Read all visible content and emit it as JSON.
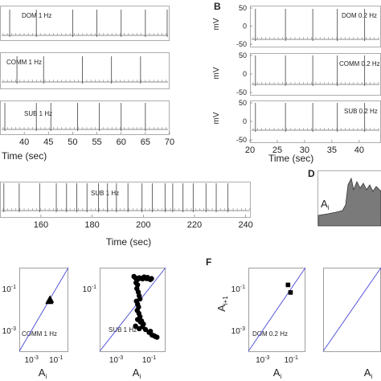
{
  "panel_labels": [
    "B",
    "D",
    "F"
  ],
  "chart_data": [
    {
      "type": "line",
      "id": "dom1",
      "annotation": "DOM 1 Hz",
      "xlim": [
        35,
        70
      ],
      "x_ticks": [],
      "spike_times": [
        37,
        42.5,
        50,
        55,
        60,
        65,
        69.5
      ]
    },
    {
      "type": "line",
      "id": "comm1",
      "annotation": "COMM 1 Hz",
      "xlim": [
        35,
        70
      ],
      "x_ticks": [],
      "spike_times": [
        38.5,
        44,
        52,
        58,
        64
      ]
    },
    {
      "type": "line",
      "id": "sub1",
      "annotation": "SUB 1 Hz",
      "xlim": [
        35,
        70
      ],
      "xlabel": "Time (sec)",
      "x_ticks": [
        "40",
        "45",
        "50",
        "55",
        "60",
        "65",
        "70"
      ],
      "spike_times": [
        36,
        42.5,
        45.5,
        51,
        55.5,
        60,
        65
      ]
    },
    {
      "type": "line",
      "id": "dom02",
      "annotation": "DOM 0.2 Hz",
      "xlim": [
        20,
        44
      ],
      "ylim": [
        -50,
        50
      ],
      "ylabel": "mV",
      "y_ticks": [
        "50",
        "0",
        "-50"
      ],
      "x_ticks": [],
      "spike_times": [
        21,
        26.5,
        31.5,
        36,
        41
      ]
    },
    {
      "type": "line",
      "id": "comm02",
      "annotation": "COMM 0.2 Hz",
      "xlim": [
        20,
        44
      ],
      "ylim": [
        -50,
        50
      ],
      "ylabel": "mV",
      "y_ticks": [
        "50",
        "0",
        "-50"
      ],
      "x_ticks": [],
      "spike_times": [
        21,
        26.5,
        31.5,
        36,
        41
      ]
    },
    {
      "type": "line",
      "id": "sub02",
      "annotation": "SUB 0.2 Hz",
      "xlim": [
        20,
        44
      ],
      "ylim": [
        -50,
        50
      ],
      "ylabel": "mV",
      "y_ticks": [
        "50",
        "0",
        "-50"
      ],
      "xlabel": "Time (sec)",
      "x_ticks": [
        "20",
        "25",
        "30",
        "35",
        "40"
      ],
      "spike_times": [
        21,
        26.5,
        31.5,
        36,
        41
      ]
    },
    {
      "type": "line",
      "id": "sublong",
      "annotation": "SUB 1 Hz",
      "xlim": [
        144,
        242
      ],
      "xlabel": "Time (sec)",
      "x_ticks": [
        "160",
        "180",
        "200",
        "220",
        "240"
      ],
      "spike_times": [
        145.5,
        151.5,
        159.5,
        166,
        170,
        174,
        178,
        182.5,
        186,
        189.5,
        194,
        199.5,
        203.5,
        208.5,
        211.5,
        215.5,
        219.5,
        224.5,
        228.5,
        233
      ]
    },
    {
      "type": "area",
      "id": "amplitude",
      "annotation": "A",
      "annotation_sub": "i"
    },
    {
      "type": "scatter",
      "id": "comm_ret",
      "annotation": "COMM 1 Hz",
      "xlabel": "A",
      "xlabel_sub": "i",
      "x_ticks": [
        "10-3",
        "10-1"
      ],
      "y_ticks": [
        "10-1",
        "10-3"
      ],
      "marker": "triangle",
      "points": [
        [
          0.028,
          0.026
        ],
        [
          0.03,
          0.029
        ],
        [
          0.032,
          0.031
        ]
      ]
    },
    {
      "type": "scatter",
      "id": "sub_ret",
      "annotation": "SUB 1 Hz",
      "xlabel": "A",
      "xlabel_sub": "i",
      "x_ticks": [
        "10-3",
        "10-1"
      ],
      "y_ticks": [
        "10-1"
      ],
      "marker": "circle",
      "points": [
        [
          0.012,
          0.38
        ],
        [
          0.015,
          0.32
        ],
        [
          0.018,
          0.3
        ],
        [
          0.02,
          0.27
        ],
        [
          0.025,
          0.33
        ],
        [
          0.03,
          0.31
        ],
        [
          0.04,
          0.29
        ],
        [
          0.05,
          0.36
        ],
        [
          0.06,
          0.32
        ],
        [
          0.07,
          0.3
        ],
        [
          0.08,
          0.34
        ],
        [
          0.09,
          0.31
        ],
        [
          0.1,
          0.29
        ],
        [
          0.12,
          0.27
        ],
        [
          0.14,
          0.3
        ],
        [
          0.016,
          0.19
        ],
        [
          0.02,
          0.15
        ],
        [
          0.018,
          0.1
        ],
        [
          0.022,
          0.068
        ],
        [
          0.025,
          0.045
        ],
        [
          0.028,
          0.032
        ],
        [
          0.017,
          0.025
        ],
        [
          0.02,
          0.018
        ],
        [
          0.023,
          0.013
        ],
        [
          0.019,
          0.009
        ],
        [
          0.024,
          0.0065
        ],
        [
          0.028,
          0.0045
        ],
        [
          0.02,
          0.0033
        ],
        [
          0.03,
          0.0025
        ],
        [
          0.045,
          0.002
        ],
        [
          0.035,
          0.0028
        ],
        [
          0.015,
          0.0016
        ],
        [
          0.025,
          0.0012
        ],
        [
          0.04,
          0.0015
        ],
        [
          0.06,
          0.0011
        ],
        [
          0.1,
          0.0008
        ],
        [
          0.15,
          0.0006
        ],
        [
          0.2,
          0.00055
        ],
        [
          0.25,
          0.0005
        ],
        [
          0.3,
          0.00047
        ],
        [
          0.12,
          0.0009
        ]
      ]
    },
    {
      "type": "scatter",
      "id": "dom02_ret",
      "annotation": "DOM 0.2 Hz",
      "xlabel": "A",
      "xlabel_sub": "i",
      "ylabel": "A",
      "ylabel_sub": "i+1",
      "x_ticks": [
        "10-3",
        "10-1"
      ],
      "y_ticks": [
        "10-1",
        "10-3"
      ],
      "marker": "square",
      "points": [
        [
          0.06,
          0.15
        ],
        [
          0.09,
          0.065
        ]
      ]
    },
    {
      "type": "scatter",
      "id": "comm02_ret",
      "annotation": "",
      "xlabel": "A",
      "xlabel_sub": "i",
      "x_ticks": [],
      "y_ticks": [],
      "marker": "square",
      "points": []
    }
  ]
}
